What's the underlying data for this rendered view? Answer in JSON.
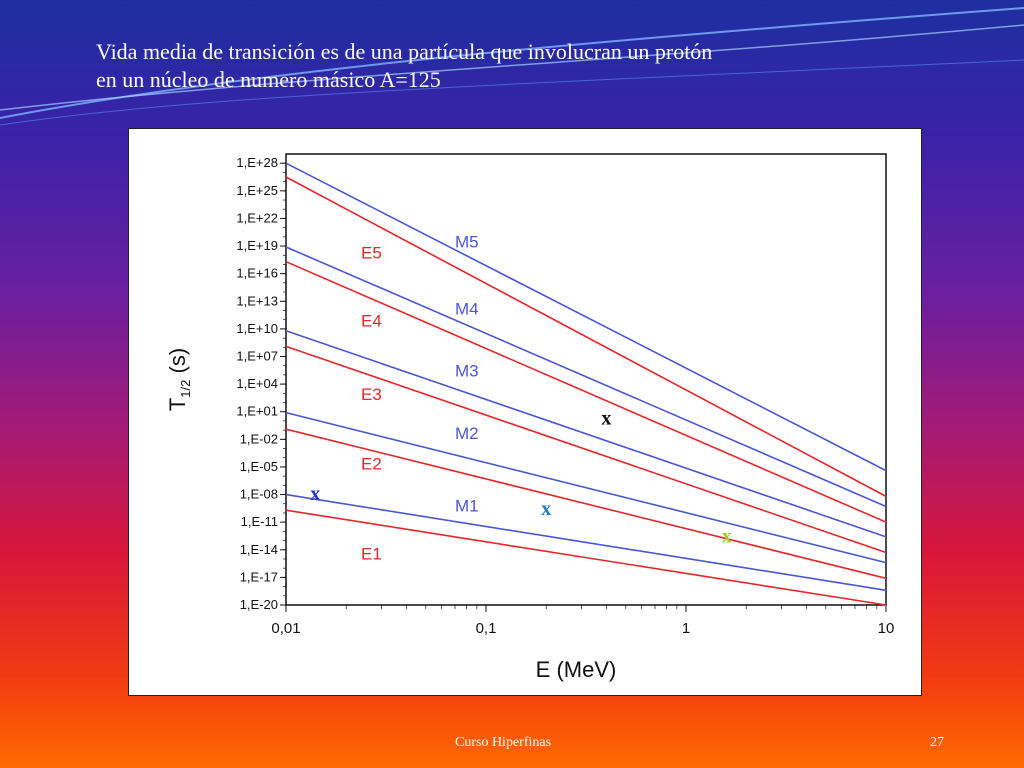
{
  "slide": {
    "title_line1": "Vida media de transición es de una partícula que involucran un protón",
    "title_line2": "en un núcleo de numero másico A=125",
    "footer": "Curso Hiperfinas",
    "page_number": "27"
  },
  "chart_data": {
    "type": "line",
    "xlabel": "E (MeV)",
    "ylabel": "T",
    "ylabel_sub": "1/2",
    "ylabel_unit": "(s)",
    "x_scale": "log",
    "y_scale": "log",
    "xlim": [
      0.01,
      10
    ],
    "ylim_exp": [
      -20,
      29
    ],
    "x_ticks": [
      {
        "value": 0.01,
        "label": "0,01"
      },
      {
        "value": 0.1,
        "label": "0,1"
      },
      {
        "value": 1,
        "label": "1"
      },
      {
        "value": 10,
        "label": "10"
      }
    ],
    "y_ticks": [
      {
        "exp": 28,
        "label": "1,E+28"
      },
      {
        "exp": 25,
        "label": "1,E+25"
      },
      {
        "exp": 22,
        "label": "1,E+22"
      },
      {
        "exp": 19,
        "label": "1,E+19"
      },
      {
        "exp": 16,
        "label": "1,E+16"
      },
      {
        "exp": 13,
        "label": "1,E+13"
      },
      {
        "exp": 10,
        "label": "1,E+10"
      },
      {
        "exp": 7,
        "label": "1,E+07"
      },
      {
        "exp": 4,
        "label": "1,E+04"
      },
      {
        "exp": 1,
        "label": "1,E+01"
      },
      {
        "exp": -2,
        "label": "1,E-02"
      },
      {
        "exp": -5,
        "label": "1,E-05"
      },
      {
        "exp": -8,
        "label": "1,E-08"
      },
      {
        "exp": -11,
        "label": "1,E-11"
      },
      {
        "exp": -14,
        "label": "1,E-14"
      },
      {
        "exp": -17,
        "label": "1,E-17"
      },
      {
        "exp": -20,
        "label": "1,E-20"
      }
    ],
    "series": [
      {
        "name": "M5",
        "color": "#4a55d8",
        "x": [
          0.01,
          10
        ],
        "y_exp": [
          28.0,
          -5.4
        ],
        "label_x": 0.07,
        "label_exp": 19.5
      },
      {
        "name": "E5",
        "color": "#e8262a",
        "x": [
          0.01,
          10
        ],
        "y_exp": [
          26.5,
          -8.2
        ],
        "label_x": 0.0095,
        "label_exp": 18.3
      },
      {
        "name": "M4",
        "color": "#4a55d8",
        "x": [
          0.01,
          10
        ],
        "y_exp": [
          18.9,
          -9.3
        ],
        "label_x": 0.07,
        "label_exp": 12.2
      },
      {
        "name": "E4",
        "color": "#e8262a",
        "x": [
          0.01,
          10
        ],
        "y_exp": [
          17.3,
          -11.0
        ],
        "label_x": 0.0095,
        "label_exp": 10.9
      },
      {
        "name": "M3",
        "color": "#4a55d8",
        "x": [
          0.01,
          10
        ],
        "y_exp": [
          9.8,
          -12.6
        ],
        "label_x": 0.07,
        "label_exp": 5.5
      },
      {
        "name": "E3",
        "color": "#e8262a",
        "x": [
          0.01,
          10
        ],
        "y_exp": [
          8.1,
          -14.3
        ],
        "label_x": 0.0095,
        "label_exp": 2.9
      },
      {
        "name": "M2",
        "color": "#4a55d8",
        "x": [
          0.01,
          10
        ],
        "y_exp": [
          0.9,
          -15.4
        ],
        "label_x": 0.07,
        "label_exp": -1.3
      },
      {
        "name": "E2",
        "color": "#e8262a",
        "x": [
          0.01,
          10
        ],
        "y_exp": [
          -0.9,
          -17.1
        ],
        "label_x": 0.0095,
        "label_exp": -4.6
      },
      {
        "name": "M1",
        "color": "#4a55d8",
        "x": [
          0.01,
          10
        ],
        "y_exp": [
          -8.0,
          -18.4
        ],
        "label_x": 0.07,
        "label_exp": -9.2
      },
      {
        "name": "E1",
        "color": "#e8262a",
        "x": [
          0.01,
          10
        ],
        "y_exp": [
          -9.7,
          -20.0
        ],
        "label_x": 0.0095,
        "label_exp": -14.4
      }
    ],
    "annotations": [
      {
        "text": "x",
        "x": 0.014,
        "y_exp": -8.6,
        "color": "#2233cc"
      },
      {
        "text": "x",
        "x": 0.2,
        "y_exp": -10.2,
        "color": "#1a7acc"
      },
      {
        "text": "x",
        "x": 0.4,
        "y_exp": -0.4,
        "color": "#111111"
      },
      {
        "text": "x",
        "x": 1.6,
        "y_exp": -13.2,
        "color": "#9bcc33"
      }
    ]
  }
}
